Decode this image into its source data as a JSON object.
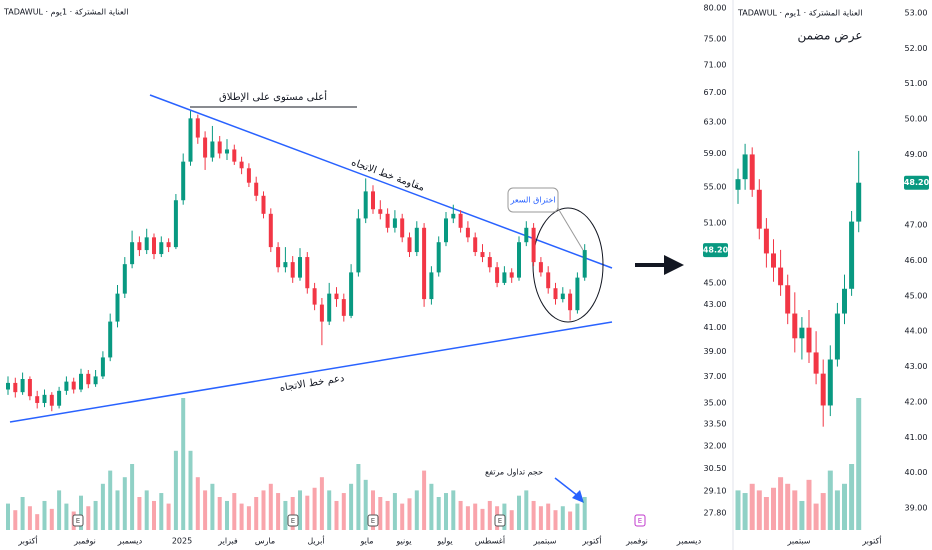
{
  "chart_data": [
    {
      "type": "candlestick",
      "header": "TADAWUL · العناية المشتركة · 1يوم",
      "log_scale": true,
      "ylim": [
        27.8,
        80
      ],
      "yticks": [
        {
          "value": 80,
          "label": "80.00"
        },
        {
          "value": 75,
          "label": "75.00"
        },
        {
          "value": 71,
          "label": "71.00"
        },
        {
          "value": 67,
          "label": "67.00"
        },
        {
          "value": 63,
          "label": "63.00"
        },
        {
          "value": 59,
          "label": "59.00"
        },
        {
          "value": 55,
          "label": "55.00"
        },
        {
          "value": 51,
          "label": "51.00"
        },
        {
          "value": 45,
          "label": "45.00"
        },
        {
          "value": 43,
          "label": "43.00"
        },
        {
          "value": 41,
          "label": "41.00"
        },
        {
          "value": 39,
          "label": "39.00"
        },
        {
          "value": 37,
          "label": "37.00"
        },
        {
          "value": 35,
          "label": "35.00"
        },
        {
          "value": 33.5,
          "label": "33.50"
        },
        {
          "value": 32,
          "label": "32.00"
        },
        {
          "value": 30.5,
          "label": "30.50"
        },
        {
          "value": 29.1,
          "label": "29.10"
        },
        {
          "value": 27.8,
          "label": "27.80"
        }
      ],
      "last_price": {
        "value": 48.2,
        "label": "48.20"
      },
      "x_labels": [
        "أكتوبر",
        "نوفمبر",
        "ديسمبر",
        "2025",
        "فبراير",
        "مارس",
        "أبريل",
        "مايو",
        "يونيو",
        "يوليو",
        "أغسطس",
        "سبتمبر",
        "أكتوبر",
        "نوفمبر",
        "ديسمبر"
      ],
      "events": [
        "E",
        "E",
        "E",
        "E",
        "E"
      ],
      "annotations": {
        "ath": "أعلى مستوى على الإطلاق",
        "resistance": "مقاومة خط الاتجاه",
        "breakout": "اختراق السعر",
        "support": "دعم خط الاتجاه",
        "volume": "حجم تداول مرتفع"
      },
      "up_color": "#089981",
      "down_color": "#f23645",
      "open": [
        36.0,
        36.5,
        35.8,
        36.8,
        35.5,
        35.0,
        35.6,
        34.8,
        35.9,
        36.6,
        36.0,
        37.2,
        36.4,
        37.0,
        38.5,
        41.5,
        44.0,
        46.8,
        49.0,
        48.2,
        49.5,
        47.8,
        49.0,
        48.5,
        53.5,
        58.0,
        63.5,
        61.0,
        58.5,
        60.5,
        59.0,
        59.5,
        58.0,
        57.2,
        55.5,
        54.0,
        52.0,
        48.5,
        46.5,
        47.0,
        45.5,
        47.5,
        44.5,
        43.0,
        41.5,
        44.0,
        43.5,
        42.0,
        46.0,
        51.5,
        54.5,
        52.5,
        52.0,
        50.5,
        51.5,
        49.5,
        48.0,
        50.5,
        43.5,
        46.0,
        49.0,
        51.5,
        52.0,
        50.5,
        49.5,
        48.0,
        47.5,
        46.5,
        45.0,
        46.0,
        45.5,
        49.0,
        50.5,
        47.0,
        46.0,
        44.5,
        43.5,
        44.0,
        42.5,
        45.5
      ],
      "high": [
        37.0,
        36.9,
        37.3,
        37.0,
        35.9,
        36.0,
        35.8,
        36.2,
        37.0,
        36.9,
        37.6,
        37.5,
        37.5,
        39.0,
        42.2,
        44.8,
        47.5,
        50.2,
        49.6,
        50.4,
        49.9,
        49.6,
        49.4,
        54.2,
        59.0,
        64.5,
        64.0,
        61.8,
        62.5,
        61.2,
        60.8,
        60.1,
        58.6,
        57.8,
        56.2,
        54.5,
        52.6,
        49.0,
        48.5,
        47.6,
        48.4,
        48.0,
        45.0,
        43.6,
        45.0,
        44.6,
        44.0,
        46.8,
        52.5,
        56.0,
        55.2,
        53.5,
        52.6,
        52.4,
        52.0,
        50.0,
        51.2,
        51.0,
        46.6,
        49.6,
        52.2,
        53.0,
        52.4,
        51.2,
        50.0,
        48.8,
        48.0,
        47.0,
        46.6,
        46.4,
        49.6,
        51.2,
        51.0,
        47.5,
        46.6,
        45.0,
        44.6,
        44.4,
        46.0,
        48.8
      ],
      "low": [
        35.6,
        35.4,
        35.6,
        35.2,
        34.6,
        34.7,
        34.4,
        34.6,
        35.6,
        35.7,
        35.8,
        36.1,
        36.2,
        36.8,
        38.2,
        41.0,
        43.6,
        46.4,
        47.6,
        47.8,
        47.3,
        47.5,
        48.0,
        48.3,
        53.0,
        57.5,
        60.2,
        57.0,
        58.0,
        58.4,
        58.2,
        57.6,
        56.5,
        55.0,
        53.4,
        51.5,
        48.0,
        46.0,
        46.0,
        45.0,
        45.2,
        44.0,
        42.5,
        39.5,
        41.2,
        42.8,
        41.5,
        41.8,
        45.6,
        51.0,
        52.0,
        51.4,
        50.0,
        50.0,
        49.0,
        47.5,
        47.6,
        42.8,
        43.0,
        45.6,
        48.6,
        51.0,
        50.0,
        49.0,
        47.6,
        47.0,
        46.0,
        44.6,
        44.8,
        45.0,
        45.2,
        48.6,
        46.6,
        45.6,
        44.0,
        43.0,
        43.2,
        41.6,
        42.2,
        45.2
      ],
      "close": [
        36.5,
        35.8,
        36.8,
        35.5,
        35.0,
        35.6,
        34.8,
        35.9,
        36.6,
        36.0,
        37.2,
        36.4,
        37.0,
        38.5,
        41.5,
        44.0,
        46.8,
        49.0,
        48.2,
        49.5,
        47.8,
        49.0,
        48.5,
        53.5,
        58.0,
        63.5,
        61.0,
        58.5,
        60.5,
        59.0,
        59.5,
        58.0,
        57.2,
        55.5,
        54.0,
        52.0,
        48.5,
        46.5,
        47.0,
        45.5,
        47.5,
        44.5,
        43.0,
        41.5,
        44.0,
        43.5,
        42.0,
        46.0,
        51.5,
        54.5,
        52.5,
        52.0,
        50.5,
        51.5,
        49.5,
        48.0,
        50.5,
        43.5,
        46.0,
        49.0,
        51.5,
        52.0,
        50.5,
        49.5,
        48.0,
        47.5,
        46.5,
        45.0,
        46.0,
        45.5,
        49.0,
        50.5,
        47.0,
        46.0,
        44.5,
        43.5,
        44.0,
        42.5,
        45.5,
        48.2
      ],
      "volume_lim": [
        0,
        100
      ],
      "volume": [
        20,
        15,
        25,
        18,
        12,
        22,
        16,
        30,
        20,
        14,
        26,
        18,
        22,
        35,
        45,
        30,
        40,
        50,
        25,
        30,
        22,
        28,
        20,
        60,
        100,
        60,
        40,
        30,
        35,
        25,
        22,
        28,
        20,
        18,
        25,
        30,
        35,
        28,
        22,
        25,
        30,
        26,
        32,
        40,
        30,
        22,
        28,
        35,
        50,
        38,
        30,
        25,
        22,
        28,
        20,
        24,
        30,
        45,
        35,
        25,
        28,
        30,
        22,
        18,
        20,
        16,
        22,
        18,
        20,
        15,
        26,
        30,
        22,
        18,
        20,
        15,
        18,
        14,
        20,
        25
      ]
    },
    {
      "type": "candlestick",
      "header": "TADAWUL · العناية المشتركة · 1يوم",
      "title": "عرض مضمن",
      "ylim": [
        39,
        53
      ],
      "yticks": [
        {
          "value": 53,
          "label": "53.00"
        },
        {
          "value": 52,
          "label": "52.00"
        },
        {
          "value": 51,
          "label": "51.00"
        },
        {
          "value": 50,
          "label": "50.00"
        },
        {
          "value": 49,
          "label": "49.00"
        },
        {
          "value": 47,
          "label": "47.00"
        },
        {
          "value": 46,
          "label": "46.00"
        },
        {
          "value": 45,
          "label": "45.00"
        },
        {
          "value": 44,
          "label": "44.00"
        },
        {
          "value": 43,
          "label": "43.00"
        },
        {
          "value": 42,
          "label": "42.00"
        },
        {
          "value": 41,
          "label": "41.00"
        },
        {
          "value": 40,
          "label": "40.00"
        },
        {
          "value": 39,
          "label": "39.00"
        }
      ],
      "last_price": {
        "value": 48.2,
        "label": "48.20"
      },
      "x_labels": [
        "سبتمبر",
        "أكتوبر"
      ],
      "up_color": "#089981",
      "down_color": "#f23645",
      "open": [
        48.0,
        48.3,
        49.0,
        48.0,
        46.9,
        46.2,
        45.8,
        45.3,
        44.5,
        43.8,
        44.1,
        43.4,
        42.8,
        41.9,
        43.2,
        44.5,
        45.2,
        47.1
      ],
      "high": [
        48.6,
        49.3,
        49.2,
        48.3,
        47.2,
        46.6,
        46.3,
        45.6,
        45.1,
        44.4,
        44.6,
        44.0,
        43.2,
        43.6,
        44.8,
        45.6,
        47.4,
        49.1
      ],
      "low": [
        47.6,
        48.0,
        47.8,
        46.6,
        45.8,
        45.4,
        45.0,
        44.2,
        43.4,
        43.2,
        43.1,
        42.5,
        41.3,
        41.6,
        43.0,
        44.2,
        45.0,
        46.8
      ],
      "close": [
        48.3,
        49.0,
        48.0,
        46.9,
        46.2,
        45.8,
        45.3,
        44.5,
        43.8,
        44.1,
        43.4,
        42.8,
        41.9,
        43.2,
        44.5,
        45.2,
        47.1,
        48.2
      ],
      "volume_lim": [
        0,
        100
      ],
      "volume": [
        30,
        28,
        35,
        30,
        25,
        32,
        40,
        35,
        30,
        22,
        38,
        20,
        28,
        45,
        30,
        35,
        50,
        100
      ]
    }
  ]
}
